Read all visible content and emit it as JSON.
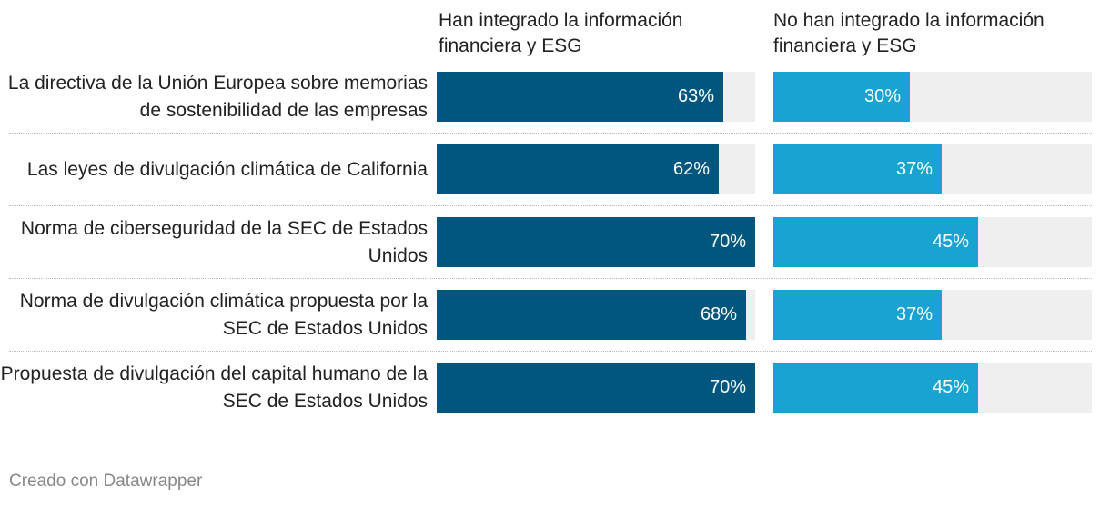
{
  "chart_data": {
    "type": "bar",
    "orientation": "horizontal",
    "categories": [
      "La directiva de la Unión Europea sobre memorias de sostenibilidad de las empresas",
      "Las leyes de divulgación climática de California",
      "Norma de ciberseguridad de la SEC de Estados Unidos",
      "Norma de divulgación climática propuesta por la SEC de Estados Unidos",
      "Propuesta de divulgación del capital humano de la SEC de Estados Unidos"
    ],
    "series": [
      {
        "name": "Han integrado la información financiera y ESG",
        "values": [
          63,
          62,
          70,
          68,
          70
        ],
        "color": "#00567d"
      },
      {
        "name": "No han integrado la información financiera y ESG",
        "values": [
          30,
          37,
          45,
          37,
          45
        ],
        "color": "#18a3d1"
      }
    ],
    "value_suffix": "%",
    "xlim": [
      0,
      70
    ],
    "track_color": "#efefef",
    "grid": false,
    "legend": "column-headers"
  },
  "footer": "Creado con Datawrapper"
}
